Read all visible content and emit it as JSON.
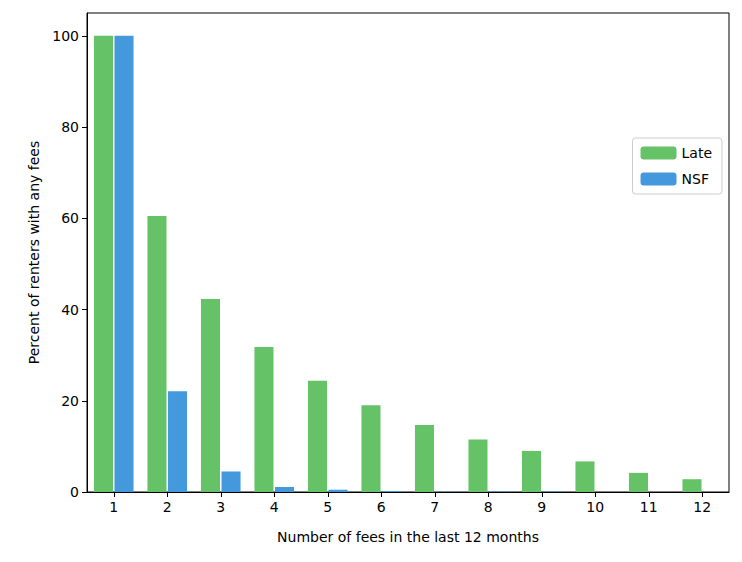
{
  "chart_data": {
    "type": "bar",
    "x_label": "Number of fees in the last 12 months",
    "y_label": "Percent of renters with any fees",
    "categories": [
      "1",
      "2",
      "3",
      "4",
      "5",
      "6",
      "7",
      "8",
      "9",
      "10",
      "11",
      "12"
    ],
    "series": [
      {
        "name": "Late",
        "color": "#66c266",
        "values": [
          100,
          60.5,
          42.3,
          31.8,
          24.4,
          19.0,
          14.7,
          11.5,
          9.0,
          6.7,
          4.2,
          2.8
        ]
      },
      {
        "name": "NSF",
        "color": "#4499dd",
        "values": [
          100,
          22.1,
          4.5,
          1.1,
          0.5,
          0.2,
          0.1,
          0.1,
          0.1,
          0,
          0,
          0
        ]
      }
    ],
    "ylim": [
      0,
      105
    ],
    "yticks": [
      0,
      20,
      40,
      60,
      80,
      100
    ],
    "grid": false,
    "legend": "right"
  }
}
